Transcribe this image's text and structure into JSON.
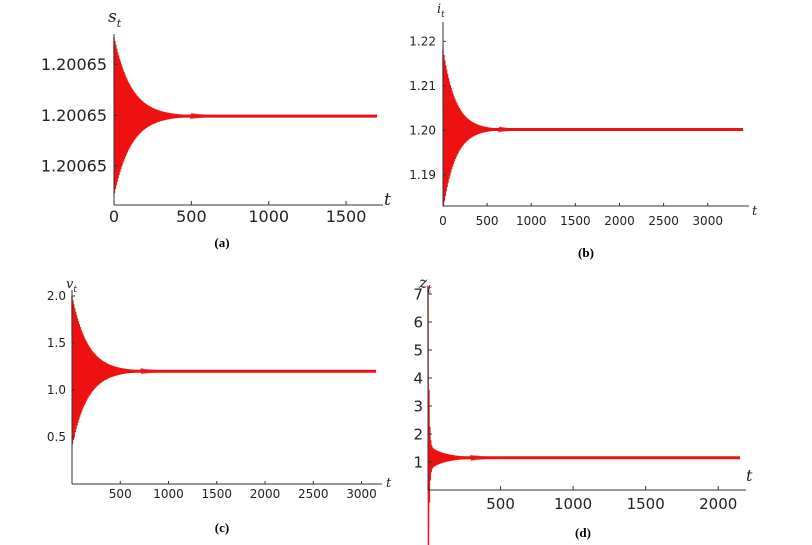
{
  "line_color": "#ee1111",
  "axis_color": "#333333",
  "chart_data": [
    {
      "id": "a",
      "type": "line",
      "panel_label": "(a)",
      "ylabel": "s",
      "ylabel_sub": "t",
      "xlabel": "t",
      "xlim": [
        0,
        1700
      ],
      "ylim": [
        0.0,
        1.0
      ],
      "x_ticks": [
        0,
        500,
        1000,
        1500
      ],
      "y_ticks": [
        {
          "value": 0.853,
          "label": "1.20065"
        },
        {
          "value": 0.543,
          "label": "1.20065"
        },
        {
          "value": 0.237,
          "label": "1.20065"
        }
      ],
      "series": [
        {
          "x_start": 0,
          "x_end": 1700,
          "equilibrium": 0.539,
          "initial_amplitude": 0.48,
          "decay_time": 110,
          "oscillation": "two-cycle"
        }
      ]
    },
    {
      "id": "b",
      "type": "line",
      "panel_label": "(b)",
      "ylabel": "i",
      "ylabel_sub": "t",
      "xlabel": "t",
      "xlim": [
        0,
        3400
      ],
      "ylim": [
        1.183,
        1.223
      ],
      "x_ticks": [
        0,
        500,
        1000,
        1500,
        2000,
        2500,
        3000
      ],
      "y_ticks": [
        {
          "value": 1.19,
          "label": "1.19"
        },
        {
          "value": 1.2,
          "label": "1.20"
        },
        {
          "value": 1.21,
          "label": "1.21"
        },
        {
          "value": 1.22,
          "label": "1.22"
        }
      ],
      "series": [
        {
          "x_start": 0,
          "x_end": 3400,
          "equilibrium": 1.2002,
          "initial_amplitude": 0.018,
          "decay_time": 140,
          "oscillation": "two-cycle"
        }
      ]
    },
    {
      "id": "c",
      "type": "line",
      "panel_label": "(c)",
      "ylabel": "v",
      "ylabel_sub": "t",
      "xlabel": "t",
      "xlim": [
        0,
        3150
      ],
      "ylim": [
        0.0,
        2.0
      ],
      "x_ticks": [
        500,
        1000,
        1500,
        2000,
        2500,
        3000
      ],
      "y_ticks": [
        {
          "value": 0.5,
          "label": "0.5"
        },
        {
          "value": 1.0,
          "label": "1.0"
        },
        {
          "value": 1.5,
          "label": "1.5"
        },
        {
          "value": 2.0,
          "label": "2.0"
        }
      ],
      "series": [
        {
          "x_start": 0,
          "x_end": 3150,
          "equilibrium": 1.2,
          "initial_amplitude": 0.8,
          "decay_time": 160,
          "oscillation": "two-cycle"
        }
      ]
    },
    {
      "id": "d",
      "type": "line",
      "panel_label": "(d)",
      "ylabel": "z",
      "ylabel_sub": "t",
      "xlabel": "t",
      "xlim": [
        0,
        2150
      ],
      "ylim": [
        0.0,
        7.0
      ],
      "x_ticks": [
        500,
        1000,
        1500,
        2000
      ],
      "y_ticks": [
        {
          "value": 1,
          "label": "1"
        },
        {
          "value": 2,
          "label": "2"
        },
        {
          "value": 3,
          "label": "3"
        },
        {
          "value": 4,
          "label": "4"
        },
        {
          "value": 5,
          "label": "5"
        },
        {
          "value": 6,
          "label": "6"
        },
        {
          "value": 7,
          "label": "7"
        }
      ],
      "series": [
        {
          "x_start": 0,
          "x_end": 2150,
          "equilibrium": 1.15,
          "initial_amplitude": 5.7,
          "decay_time": 6,
          "tail_amplitude": 0.45,
          "tail_decay": 110,
          "oscillation": "two-cycle"
        }
      ]
    }
  ]
}
